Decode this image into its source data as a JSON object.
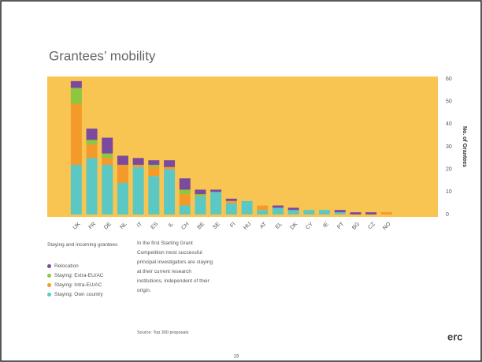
{
  "page_title": "Grantees’ mobility",
  "chart_data": {
    "type": "stacked_bar",
    "ylabel": "No. of Grantees",
    "categories": [
      "UK",
      "FR",
      "DE",
      "NL",
      "IT",
      "ES",
      "IL",
      "CH",
      "BE",
      "SE",
      "FI",
      "HU",
      "AT",
      "EL",
      "DK",
      "CY",
      "IE",
      "PT",
      "BG",
      "CZ",
      "NO"
    ],
    "series": [
      {
        "name": "Relocation",
        "color": "#7b4a9e",
        "values": [
          3,
          5,
          7,
          4,
          3,
          2,
          3,
          5,
          2,
          1,
          1,
          0,
          0,
          1,
          1,
          0,
          0,
          1,
          1,
          1,
          0
        ]
      },
      {
        "name": "Staying: Extra-EU/AC",
        "color": "#8dc63f",
        "values": [
          7,
          2,
          2,
          0,
          0,
          1,
          0,
          2,
          1,
          0,
          0,
          0,
          0,
          0,
          0,
          0,
          0,
          0,
          0,
          0,
          0
        ]
      },
      {
        "name": "Staying: Intra-EU/AC",
        "color": "#f39a2b",
        "values": [
          27,
          6,
          3,
          8,
          1,
          4,
          1,
          5,
          0,
          0,
          1,
          0,
          2,
          0,
          0,
          0,
          0,
          0,
          0,
          0,
          1
        ]
      },
      {
        "name": "Staying: Own country",
        "color": "#5cc8c3",
        "values": [
          22,
          25,
          22,
          14,
          21,
          17,
          20,
          4,
          8,
          10,
          5,
          6,
          2,
          3,
          2,
          2,
          2,
          1,
          0,
          0,
          0
        ]
      }
    ],
    "ylim": [
      0,
      60
    ],
    "yticks": [
      0,
      10,
      20,
      30,
      40,
      50,
      60
    ],
    "legend_title": "Staying and incoming grantees",
    "background": "#f9c552"
  },
  "note": "In the first Starting Grant Competition most successful principal investigators are staying at their current research institutions, independent of their origin.",
  "source": "Source: Top 300 proposals",
  "page_number": "19",
  "logo": "erc"
}
